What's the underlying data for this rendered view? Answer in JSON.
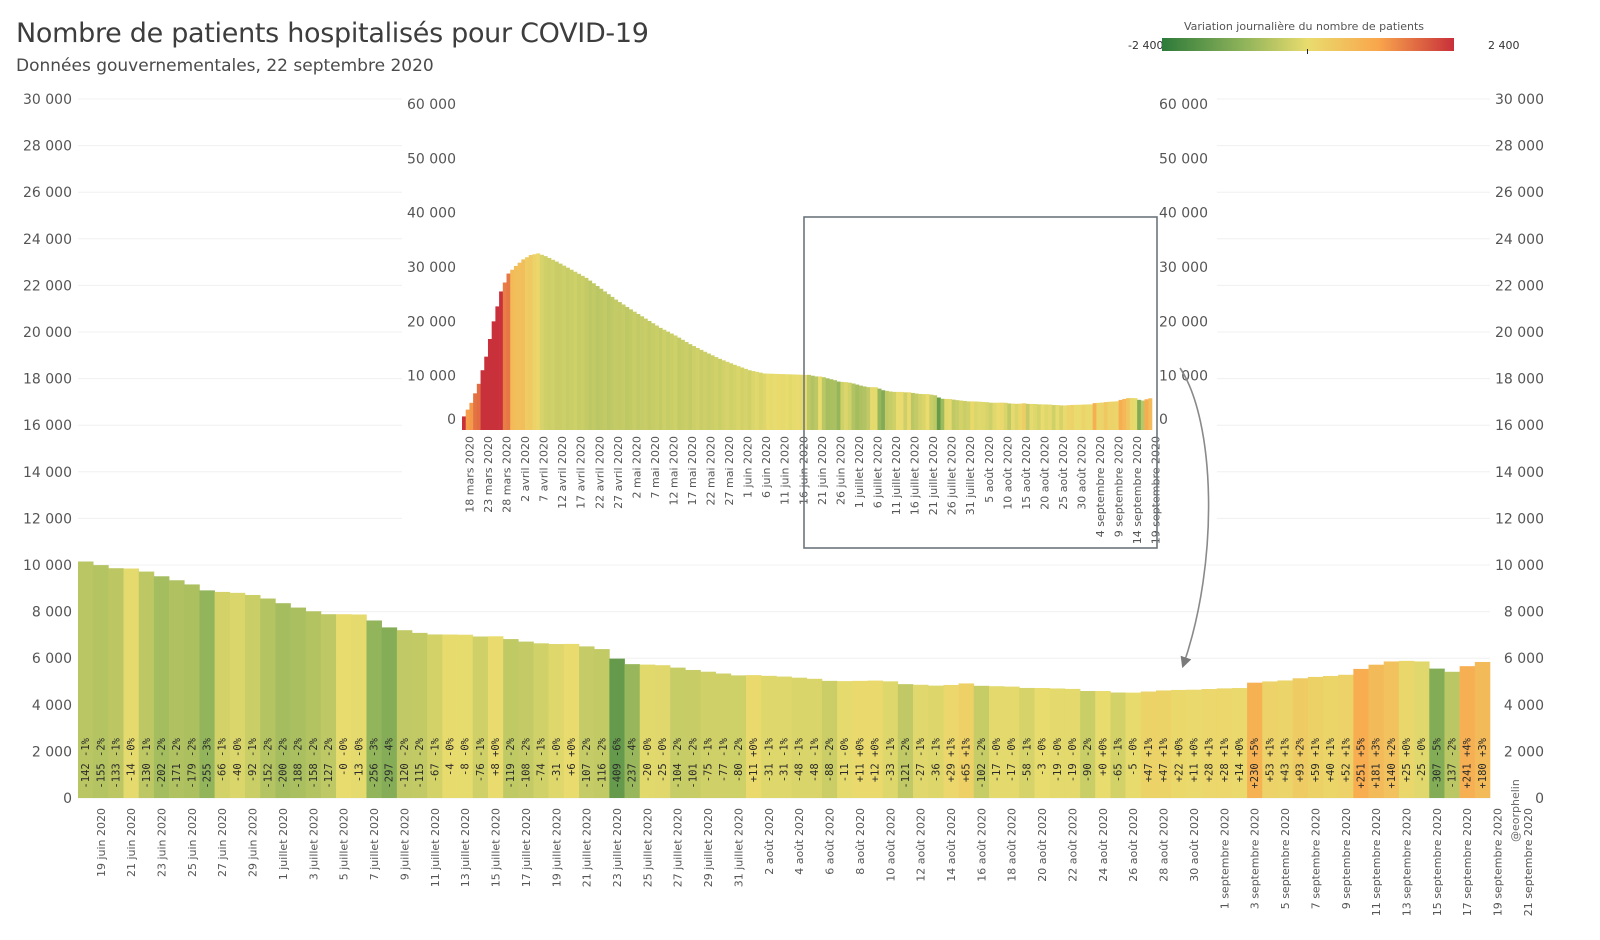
{
  "header": {
    "title": "Nombre de patients hospitalisés pour COVID-19",
    "subtitle": "Données gouvernementales, 22 septembre 2020"
  },
  "legend": {
    "title": "Variation journalière du nombre de patients",
    "min_label": "-2 400",
    "max_label": "2 400",
    "min": -2400,
    "max": 2400,
    "colors": [
      "#2d7a3a",
      "#8fb35a",
      "#e9dc6e",
      "#f9a64c",
      "#c8303a"
    ]
  },
  "signature": "@eorphelin",
  "chart_data": [
    {
      "type": "bar",
      "name": "main",
      "title": "",
      "ylim": [
        0,
        30000
      ],
      "y_ticks": [
        "0",
        "2 000",
        "4 000",
        "6 000",
        "8 000",
        "10 000",
        "12 000",
        "14 000",
        "16 000",
        "18 000",
        "20 000",
        "22 000",
        "24 000",
        "26 000",
        "28 000",
        "30 000"
      ],
      "date_labels": [
        "19 juin 2020",
        "21 juin 2020",
        "23 juin 2020",
        "25 juin 2020",
        "27 juin 2020",
        "29 juin 2020",
        "1 juillet 2020",
        "3 juillet 2020",
        "5 juillet 2020",
        "7 juillet 2020",
        "9 juillet 2020",
        "11 juillet 2020",
        "13 juillet 2020",
        "15 juillet 2020",
        "17 juillet 2020",
        "19 juillet 2020",
        "21 juillet 2020",
        "23 juillet 2020",
        "25 juillet 2020",
        "27 juillet 2020",
        "29 juillet 2020",
        "31 juillet 2020",
        "2 août 2020",
        "4 août 2020",
        "6 août 2020",
        "8 août 2020",
        "10 août 2020",
        "12 août 2020",
        "14 août 2020",
        "16 août 2020",
        "18 août 2020",
        "20 août 2020",
        "22 août 2020",
        "24 août 2020",
        "26 août 2020",
        "28 août 2020",
        "30 août 2020",
        "1 septembre 2020",
        "3 septembre 2020",
        "5 septembre 2020",
        "7 septembre 2020",
        "9 septembre 2020",
        "11 septembre 2020",
        "13 septembre 2020",
        "15 septembre 2020",
        "17 septembre 2020",
        "19 septembre 2020",
        "21 septembre 2020"
      ],
      "values": [
        10150,
        9995,
        9862,
        9848,
        9718,
        9516,
        9345,
        9166,
        8911,
        8845,
        8805,
        8713,
        8561,
        8361,
        8173,
        8015,
        7888,
        7888,
        7875,
        7619,
        7322,
        7202,
        7087,
        7020,
        7016,
        7008,
        6932,
        6940,
        6821,
        6713,
        6639,
        6608,
        6614,
        6507,
        6391,
        5982,
        5745,
        5725,
        5700,
        5596,
        5495,
        5420,
        5343,
        5263,
        5274,
        5243,
        5212,
        5164,
        5116,
        5028,
        5017,
        5028,
        5040,
        5007,
        4886,
        4859,
        4823,
        4852,
        4917,
        4815,
        4798,
        4781,
        4723,
        4720,
        4701,
        4682,
        4592,
        4592,
        4527,
        4522,
        4569,
        4616,
        4638,
        4649,
        4677,
        4705,
        4719,
        4949,
        5002,
        5045,
        5138,
        5197,
        5237,
        5289,
        5540,
        5721,
        5861,
        5886,
        5861,
        5554,
        5417,
        5658,
        5838
      ],
      "variations": [
        "-142 -1%",
        "-155 -2%",
        "-133 -1%",
        "-14 -0%",
        "-130 -1%",
        "-202 -2%",
        "-171 -2%",
        "-179 -2%",
        "-255 -3%",
        "-66 -1%",
        "-40 -0%",
        "-92 -1%",
        "-152 -2%",
        "-200 -2%",
        "-188 -2%",
        "-158 -2%",
        "-127 -2%",
        "-0 -0%",
        "-13 -0%",
        "-256 -3%",
        "-297 -4%",
        "-120 -2%",
        "-115 -2%",
        "-67 -1%",
        "-4 -0%",
        "-8 -0%",
        "-76 -1%",
        "+8 +0%",
        "-119 -2%",
        "-108 -2%",
        "-74 -1%",
        "-31 -0%",
        "+6 +0%",
        "-107 -2%",
        "-116 -2%",
        "-409 -6%",
        "-237 -4%",
        "-20 -0%",
        "-25 -0%",
        "-104 -2%",
        "-101 -2%",
        "-75 -1%",
        "-77 -1%",
        "-80 -2%",
        "+11 +0%",
        "-31 -1%",
        "-31 -1%",
        "-48 -1%",
        "-48 -1%",
        "-88 -2%",
        "-11 -0%",
        "+11 +0%",
        "+12 +0%",
        "-33 -1%",
        "-121 -2%",
        "-27 -1%",
        "-36 -1%",
        "+29 +1%",
        "+65 +1%",
        "-102 -2%",
        "-17 -0%",
        "-17 -0%",
        "-58 -1%",
        "-3 -0%",
        "-19 -0%",
        "-19 -0%",
        "-90 -2%",
        "+0 +0%",
        "-65 -1%",
        "-5 -0%",
        "+47 +1%",
        "+47 +1%",
        "+22 +0%",
        "+11 +0%",
        "+28 +1%",
        "+28 +1%",
        "+14 +0%",
        "+230 +5%",
        "+53 +1%",
        "+43 +1%",
        "+93 +2%",
        "+59 +1%",
        "+40 +1%",
        "+52 +1%",
        "+251 +5%",
        "+181 +3%",
        "+140 +2%",
        "+25 +0%",
        "-25 -0%",
        "-307 -5%",
        "-137 -2%",
        "+241 +4%",
        "+180 +3%"
      ]
    },
    {
      "type": "bar",
      "name": "overview",
      "title": "",
      "ylim": [
        0,
        60000
      ],
      "y_ticks": [
        "0",
        "10 000",
        "20 000",
        "30 000",
        "40 000",
        "50 000",
        "60 000"
      ],
      "date_labels": [
        "18 mars 2020",
        "23 mars 2020",
        "28 mars 2020",
        "2 avril 2020",
        "7 avril 2020",
        "12 avril 2020",
        "17 avril 2020",
        "22 avril 2020",
        "27 avril 2020",
        "2 mai 2020",
        "7 mai 2020",
        "12 mai 2020",
        "17 mai 2020",
        "22 mai 2020",
        "27 mai 2020",
        "1 juin 2020",
        "6 juin 2020",
        "11 juin 2020",
        "16 juin 2020",
        "21 juin 2020",
        "26 juin 2020",
        "1 juillet 2020",
        "6 juillet 2020",
        "11 juillet 2020",
        "16 juillet 2020",
        "21 juillet 2020",
        "26 juillet 2020",
        "31 juillet 2020",
        "5 août 2020",
        "10 août 2020",
        "15 août 2020",
        "20 août 2020",
        "25 août 2020",
        "30 août 2020",
        "4 septembre 2020",
        "9 septembre 2020",
        "14 septembre 2020",
        "19 septembre 2020"
      ],
      "zoom_start_label": "19 juin 2020"
    }
  ]
}
